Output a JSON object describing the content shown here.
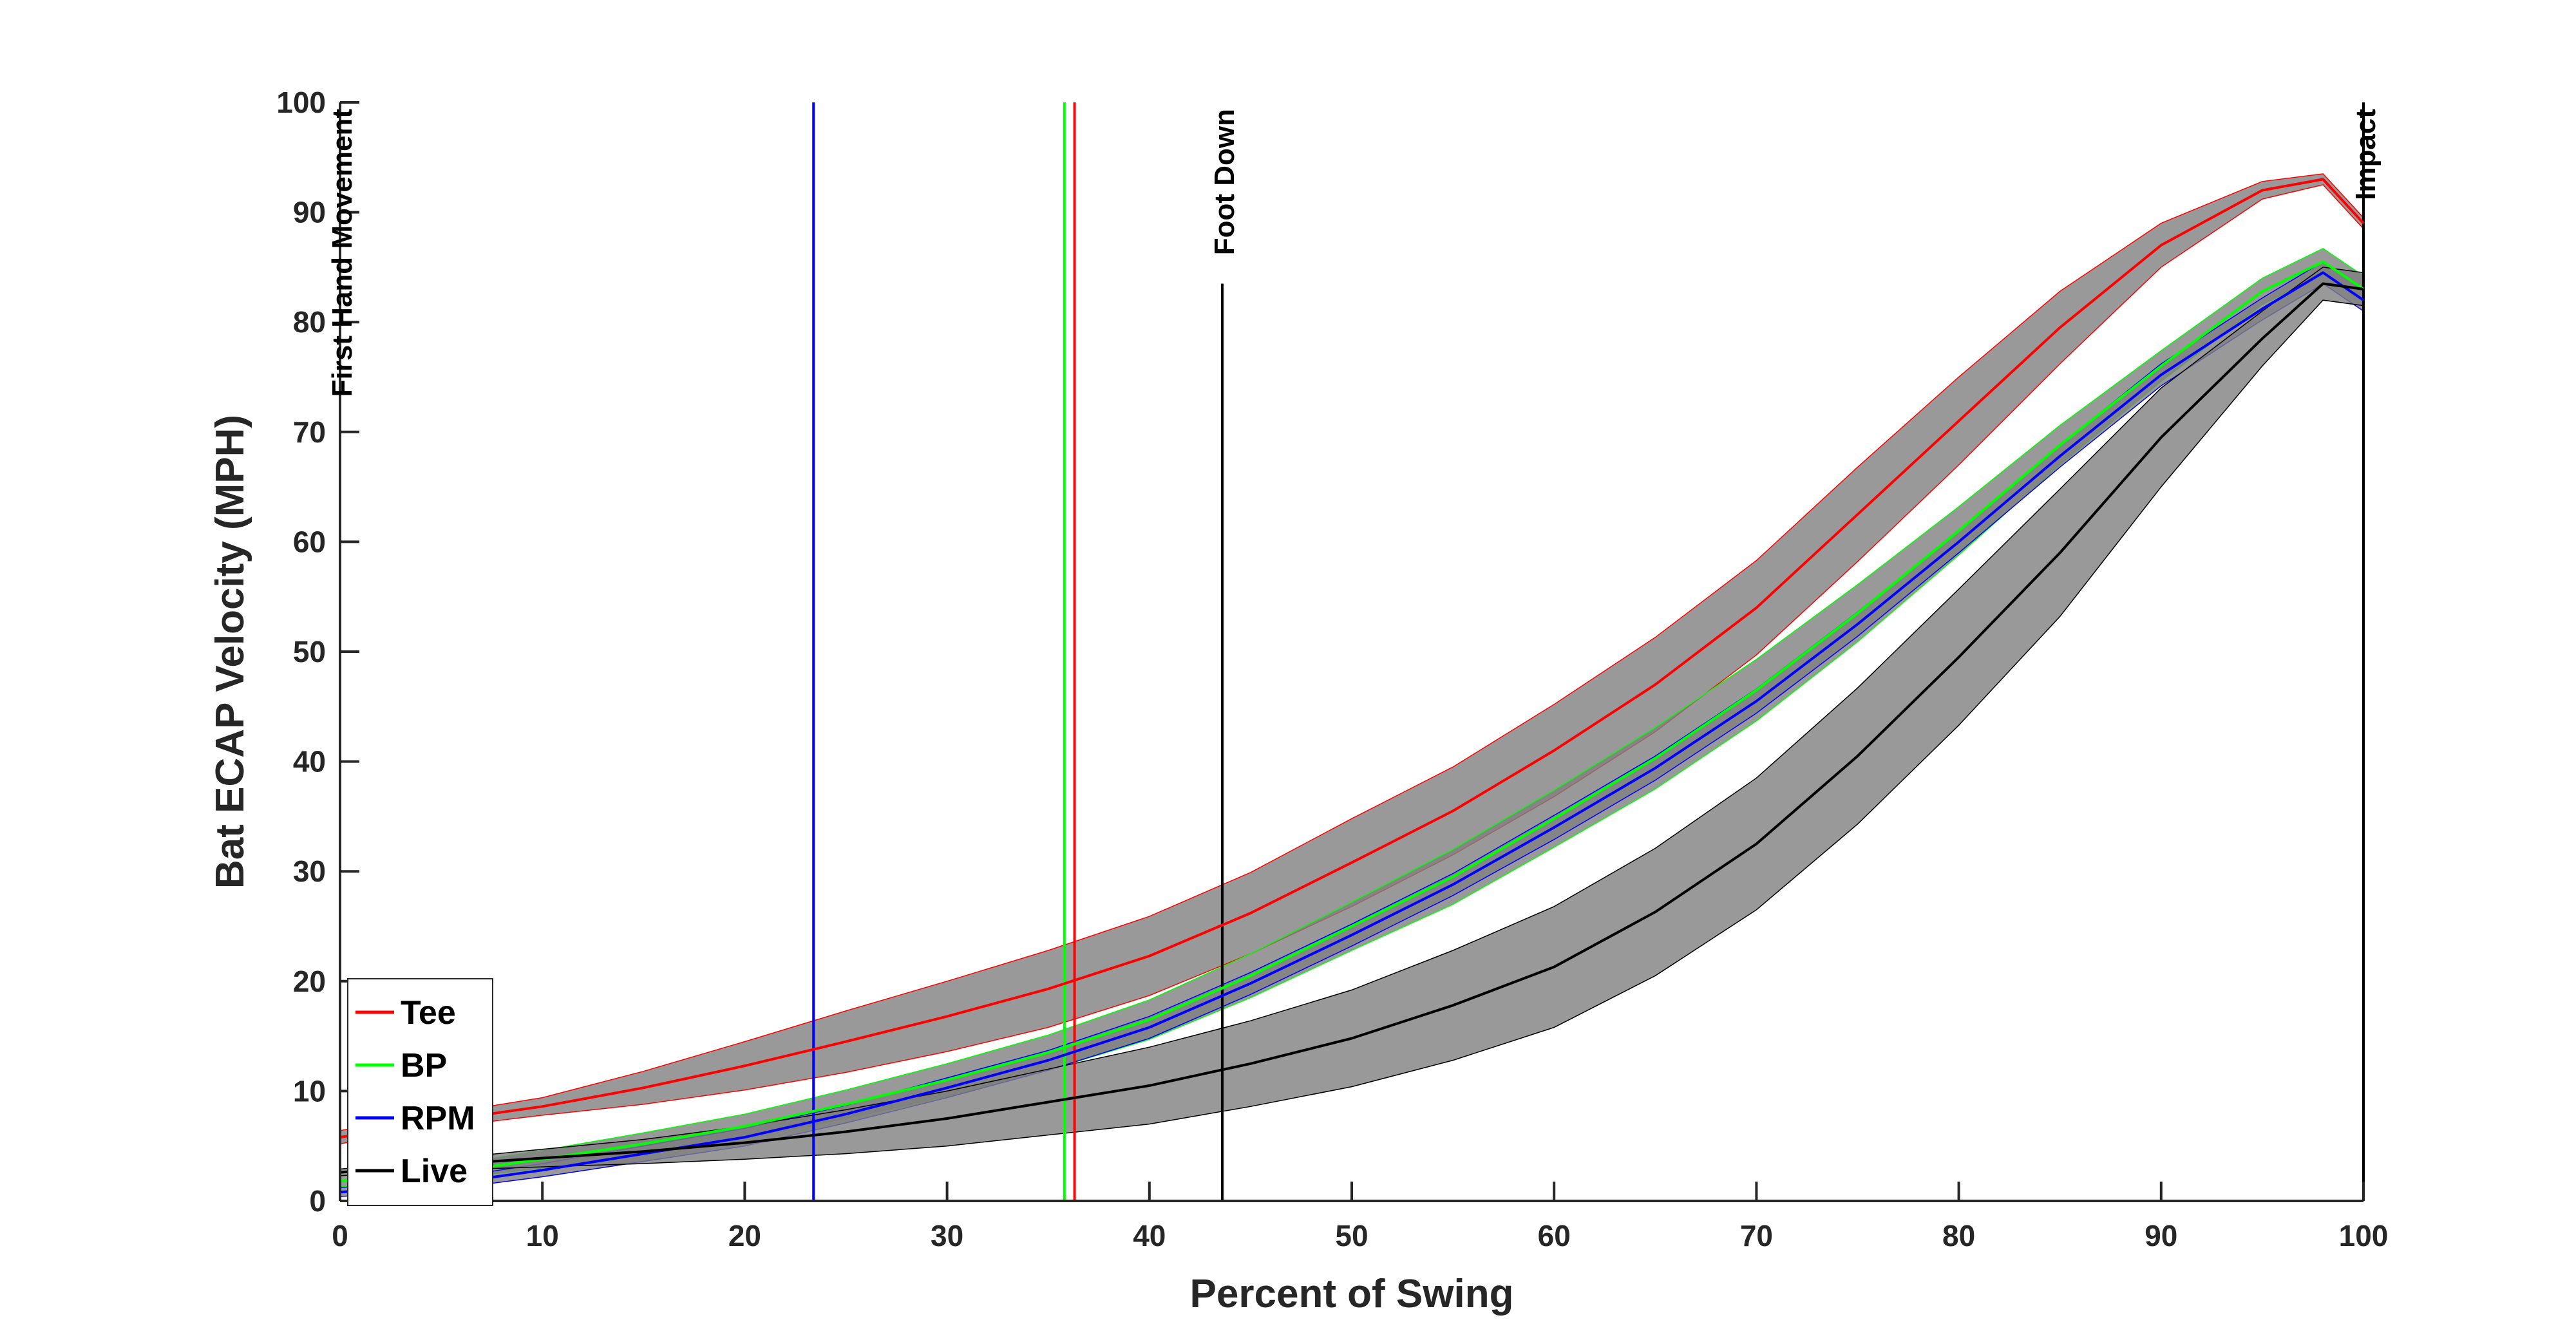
{
  "chart_data": {
    "type": "line",
    "xlabel": "Percent of Swing",
    "ylabel": "Bat ECAP Velocity (MPH)",
    "xlim": [
      0,
      100
    ],
    "ylim": [
      0,
      100
    ],
    "xticks": [
      0,
      10,
      20,
      30,
      40,
      50,
      60,
      70,
      80,
      90,
      100
    ],
    "yticks": [
      0,
      10,
      20,
      30,
      40,
      50,
      60,
      70,
      80,
      90,
      100
    ],
    "grid": false,
    "legend_position": "bottom-left",
    "band_color": "#808080",
    "series": [
      {
        "name": "Tee",
        "color": "#ff0000",
        "x": [
          0,
          5,
          10,
          15,
          20,
          25,
          30,
          35,
          40,
          45,
          50,
          55,
          60,
          65,
          70,
          75,
          80,
          85,
          90,
          95,
          98,
          100
        ],
        "values": [
          5.8,
          7.3,
          8.6,
          10.3,
          12.3,
          14.5,
          16.8,
          19.3,
          22.3,
          26.2,
          30.8,
          35.5,
          41,
          47,
          54,
          62.5,
          71,
          79.5,
          87,
          92,
          93,
          89
        ],
        "band": [
          0.6,
          0.6,
          0.8,
          1.5,
          2.2,
          2.8,
          3.2,
          3.5,
          3.6,
          3.7,
          4,
          4,
          4.2,
          4.3,
          4.3,
          4.3,
          4,
          3.3,
          2,
          0.8,
          0.5,
          0.5
        ]
      },
      {
        "name": "BP",
        "color": "#00ff00",
        "x": [
          0,
          5,
          10,
          15,
          20,
          25,
          30,
          35,
          40,
          45,
          50,
          55,
          60,
          65,
          70,
          75,
          80,
          85,
          90,
          95,
          98,
          100
        ],
        "values": [
          1.8,
          2.5,
          3.8,
          5.2,
          6.8,
          8.8,
          11,
          13.5,
          16.5,
          20.5,
          25,
          29.5,
          34.8,
          40.3,
          46.5,
          53.5,
          61,
          68.8,
          76,
          82.8,
          85.5,
          83
        ],
        "band": [
          0.5,
          0.6,
          0.8,
          1,
          1.1,
          1.3,
          1.5,
          1.6,
          1.8,
          2,
          2.2,
          2.5,
          2.6,
          2.8,
          2.8,
          2.6,
          2.2,
          1.8,
          1.4,
          1.2,
          1.2,
          1.2
        ]
      },
      {
        "name": "RPM",
        "color": "#0000ff",
        "x": [
          0,
          5,
          10,
          15,
          20,
          25,
          30,
          35,
          40,
          45,
          50,
          55,
          60,
          65,
          70,
          75,
          80,
          85,
          90,
          95,
          98,
          100
        ],
        "values": [
          0.8,
          1.5,
          2.8,
          4.3,
          5.8,
          7.9,
          10.3,
          12.8,
          15.8,
          19.8,
          24.2,
          28.8,
          34,
          39.4,
          45.5,
          52.5,
          60,
          67.8,
          75.2,
          81.2,
          84.5,
          82
        ],
        "band": [
          0.4,
          0.5,
          0.6,
          0.7,
          0.8,
          0.8,
          0.9,
          0.9,
          1,
          1,
          1,
          1,
          1.1,
          1.1,
          1.1,
          1.1,
          1,
          1,
          1,
          1,
          1,
          1
        ]
      },
      {
        "name": "Live",
        "color": "#000000",
        "x": [
          0,
          5,
          10,
          15,
          20,
          25,
          30,
          35,
          40,
          45,
          50,
          55,
          60,
          65,
          70,
          75,
          80,
          85,
          90,
          95,
          98,
          100
        ],
        "values": [
          2.6,
          3.3,
          3.9,
          4.5,
          5.3,
          6.3,
          7.5,
          9,
          10.5,
          12.5,
          14.8,
          17.8,
          21.3,
          26.3,
          32.5,
          40.5,
          49.5,
          59,
          69.5,
          78.5,
          83.5,
          83
        ],
        "band": [
          0.3,
          0.5,
          0.8,
          1.1,
          1.5,
          2,
          2.5,
          3,
          3.5,
          3.9,
          4.4,
          5,
          5.5,
          5.8,
          6,
          6.2,
          6.2,
          5.8,
          4.5,
          2.5,
          1.5,
          1.5
        ]
      }
    ],
    "vlines": [
      {
        "x": 0,
        "color": "#000000",
        "label": "First Hand Movement"
      },
      {
        "x": 23.4,
        "color": "#0000ff",
        "label": ""
      },
      {
        "x": 35.8,
        "color": "#00ff00",
        "label": ""
      },
      {
        "x": 36.3,
        "color": "#ff0000",
        "label": ""
      },
      {
        "x": 43.6,
        "color": "#000000",
        "label": "Foot Down",
        "ymax": 83.5
      },
      {
        "x": 100,
        "color": "#000000",
        "label": "Impact"
      }
    ]
  }
}
